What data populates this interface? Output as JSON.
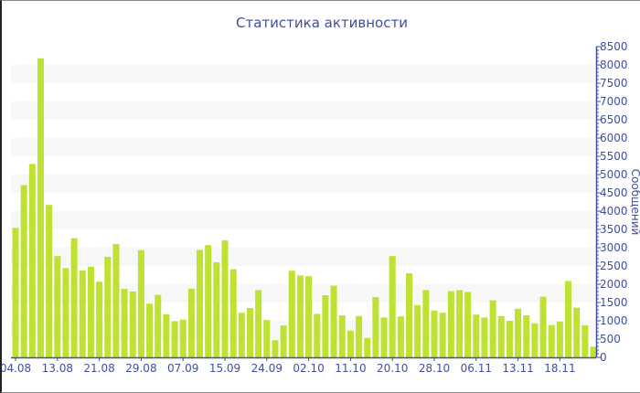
{
  "chart_data": {
    "type": "bar",
    "title": "Статистика активности",
    "ylabel": "Сообщений",
    "xlabel": "",
    "ylim": [
      0,
      8500
    ],
    "y_ticks": [
      0,
      500,
      1000,
      1500,
      2000,
      2500,
      3000,
      3500,
      4000,
      4500,
      5000,
      5500,
      6000,
      6500,
      7000,
      7500,
      8000,
      8500
    ],
    "y_axis_side": "right",
    "grid": "alternating horizontal bands",
    "x_tick_labels": [
      "04.08",
      "13.08",
      "21.08",
      "29.08",
      "07.09",
      "15.09",
      "24.09",
      "02.10",
      "11.10",
      "20.10",
      "28.10",
      "06.11",
      "13.11",
      "18.11"
    ],
    "x_tick_every_n_bars": 5,
    "values": [
      3540,
      4710,
      5290,
      8180,
      4170,
      2770,
      2440,
      3260,
      2380,
      2480,
      2070,
      2750,
      3100,
      1870,
      1800,
      2930,
      1470,
      1710,
      1180,
      990,
      1030,
      1880,
      2940,
      3070,
      2600,
      3200,
      2410,
      1220,
      1350,
      1840,
      1020,
      470,
      870,
      2370,
      2240,
      2220,
      1190,
      1700,
      1960,
      1150,
      730,
      1130,
      530,
      1650,
      1090,
      2770,
      1120,
      2300,
      1430,
      1840,
      1280,
      1220,
      1810,
      1840,
      1790,
      1170,
      1090,
      1560,
      1130,
      1000,
      1330,
      1150,
      930,
      1660,
      880,
      980,
      2090,
      1360,
      880,
      290
    ],
    "colors": {
      "bar": "#bde231",
      "axis": "#3f4f9f",
      "band": "#f7f7f7"
    }
  }
}
